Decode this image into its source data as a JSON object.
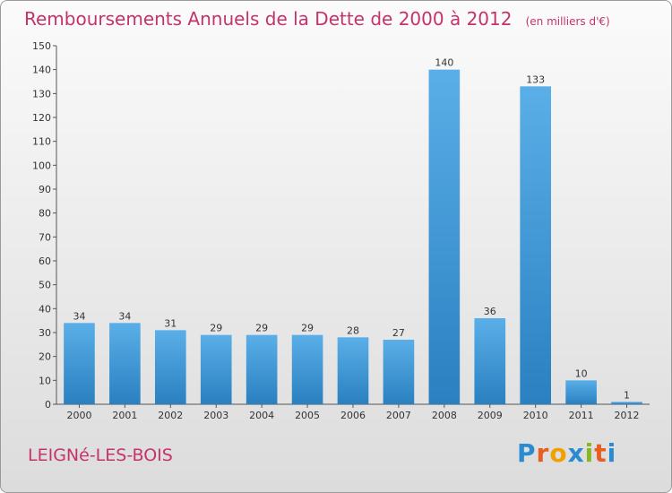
{
  "page": {
    "commune": "LEIGNé-LES-BOIS",
    "brand_letters": [
      {
        "ch": "P",
        "color": "#2a8bd0"
      },
      {
        "ch": "r",
        "color": "#e85e20"
      },
      {
        "ch": "o",
        "color": "#f0a000"
      },
      {
        "ch": "x",
        "color": "#2a8bd0"
      },
      {
        "ch": "i",
        "color": "#88b820"
      },
      {
        "ch": "t",
        "color": "#e85e20"
      },
      {
        "ch": "i",
        "color": "#2a8bd0"
      }
    ]
  },
  "chart_data": {
    "type": "bar",
    "title": "Remboursements Annuels de la Dette de 2000 à 2012",
    "unit": "(en milliers d'€)",
    "xlabel": "",
    "ylabel": "",
    "categories": [
      "2000",
      "2001",
      "2002",
      "2003",
      "2004",
      "2005",
      "2006",
      "2007",
      "2008",
      "2009",
      "2010",
      "2011",
      "2012"
    ],
    "values": [
      34,
      34,
      31,
      29,
      29,
      29,
      28,
      27,
      140,
      36,
      133,
      10,
      1
    ],
    "ylim": [
      0,
      150
    ],
    "yticks": [
      0,
      10,
      20,
      30,
      40,
      50,
      60,
      70,
      80,
      90,
      100,
      110,
      120,
      130,
      140,
      150
    ],
    "grid": false,
    "legend": "none",
    "colors": {
      "bar_light": "#5aafe8",
      "bar_dark": "#2a80c0",
      "text": "#333333",
      "title": "#c4336c"
    }
  }
}
